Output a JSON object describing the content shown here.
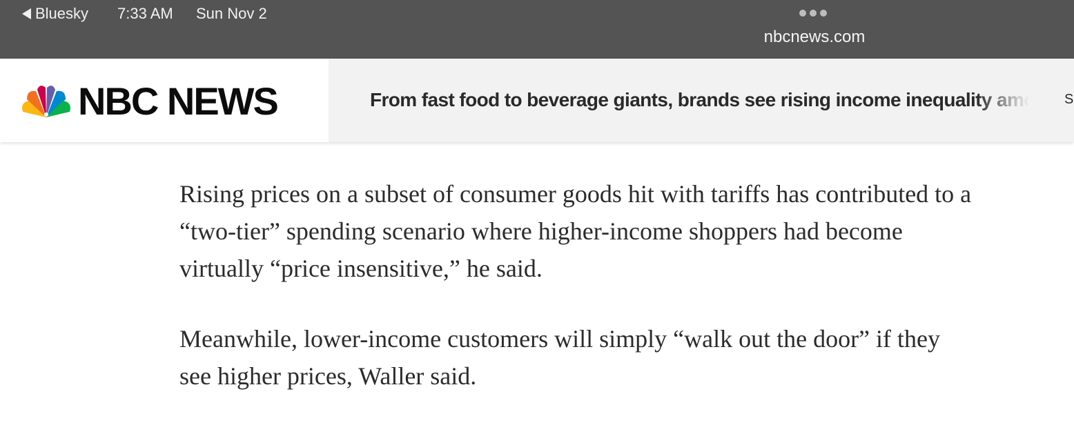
{
  "status_bar": {
    "back_app": "Bluesky",
    "time": "7:33 AM",
    "date": "Sun Nov 2",
    "url": "nbcnews.com"
  },
  "header": {
    "logo_text": "NBC NEWS",
    "ticker_headline": "From fast food to beverage giants, brands see rising income inequality among consumers",
    "ticker_next": "S"
  },
  "article": {
    "paragraphs": [
      "Rising prices on a subset of consumer goods hit with tariffs has contributed to a “two-tier” spending scenario where higher-income shoppers had become virtually “price insensitive,” he said.",
      "Meanwhile, lower-income customers will simply “walk out the door” if they see higher prices, Waller said."
    ]
  },
  "colors": {
    "status_bar_bg": "#555455",
    "ticker_bg": "#f2f2f2",
    "peacock": [
      "#fcb711",
      "#f37021",
      "#cc004c",
      "#6460aa",
      "#0089d0",
      "#0db14b"
    ]
  },
  "icons": {
    "back": "back-triangle-icon",
    "more": "more-dots-icon",
    "logo": "nbc-peacock-icon"
  }
}
